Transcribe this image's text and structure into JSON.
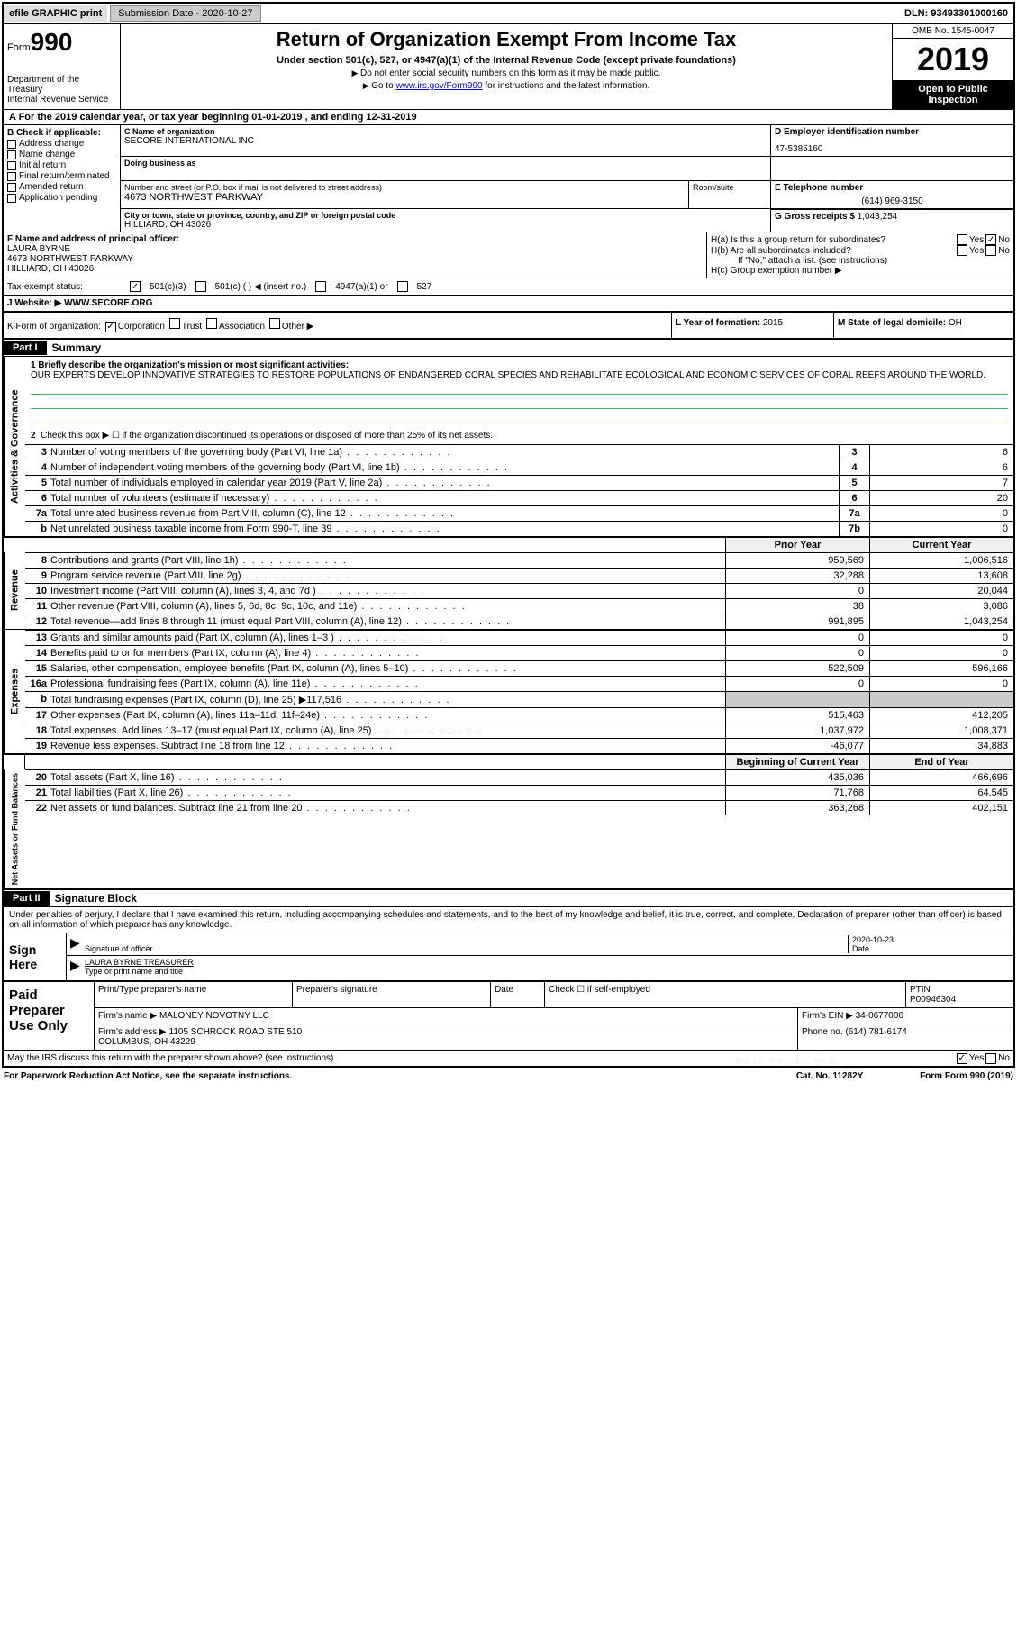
{
  "topbar": {
    "efile": "efile GRAPHIC print",
    "submission_label": "Submission Date - 2020-10-27",
    "dln": "DLN: 93493301000160"
  },
  "header": {
    "form_word": "Form",
    "form_num": "990",
    "dept": "Department of the Treasury\nInternal Revenue Service",
    "title": "Return of Organization Exempt From Income Tax",
    "subtitle": "Under section 501(c), 527, or 4947(a)(1) of the Internal Revenue Code (except private foundations)",
    "note1": "Do not enter social security numbers on this form as it may be made public.",
    "note2_pre": "Go to ",
    "note2_link": "www.irs.gov/Form990",
    "note2_post": " for instructions and the latest information.",
    "omb": "OMB No. 1545-0047",
    "year": "2019",
    "inspection": "Open to Public Inspection"
  },
  "period": "A For the 2019 calendar year, or tax year beginning 01-01-2019    , and ending 12-31-2019",
  "section_b": {
    "label": "B Check if applicable:",
    "items": [
      "Address change",
      "Name change",
      "Initial return",
      "Final return/terminated",
      "Amended return",
      "Application pending"
    ]
  },
  "section_c": {
    "name_lbl": "C Name of organization",
    "name": "SECORE INTERNATIONAL INC",
    "dba_lbl": "Doing business as",
    "dba": "",
    "addr_lbl": "Number and street (or P.O. box if mail is not delivered to street address)",
    "room_lbl": "Room/suite",
    "addr": "4673 NORTHWEST PARKWAY",
    "city_lbl": "City or town, state or province, country, and ZIP or foreign postal code",
    "city": "HILLIARD, OH  43026"
  },
  "section_d": {
    "lbl": "D Employer identification number",
    "val": "47-5385160"
  },
  "section_e": {
    "lbl": "E Telephone number",
    "val": "(614) 969-3150"
  },
  "section_g": {
    "lbl": "G Gross receipts $",
    "val": "1,043,254"
  },
  "section_f": {
    "lbl": "F Name and address of principal officer:",
    "name": "LAURA BYRNE",
    "addr": "4673 NORTHWEST PARKWAY\nHILLIARD, OH  43026"
  },
  "section_h": {
    "ha": "H(a)  Is this a group return for subordinates?",
    "hb": "H(b)  Are all subordinates included?",
    "hb_note": "If \"No,\" attach a list. (see instructions)",
    "hc": "H(c)  Group exemption number ▶",
    "yes": "Yes",
    "no": "No"
  },
  "tax_status": {
    "lbl": "Tax-exempt status:",
    "o1": "501(c)(3)",
    "o2": "501(c) (   ) ◀ (insert no.)",
    "o3": "4947(a)(1) or",
    "o4": "527"
  },
  "section_j": {
    "lbl": "J   Website: ▶",
    "val": "WWW.SECORE.ORG"
  },
  "section_k": {
    "lbl": "K Form of organization:",
    "opts": [
      "Corporation",
      "Trust",
      "Association",
      "Other ▶"
    ]
  },
  "section_l": {
    "lbl": "L Year of formation:",
    "val": "2015"
  },
  "section_m": {
    "lbl": "M State of legal domicile:",
    "val": "OH"
  },
  "part1": {
    "hdr": "Part I",
    "title": "Summary"
  },
  "mission": {
    "q1": "1   Briefly describe the organization's mission or most significant activities:",
    "text": "OUR EXPERTS DEVELOP INNOVATIVE STRATEGIES TO RESTORE POPULATIONS OF ENDANGERED CORAL SPECIES AND REHABILITATE ECOLOGICAL AND ECONOMIC SERVICES OF CORAL REEFS AROUND THE WORLD."
  },
  "q2": "Check this box ▶ ☐ if the organization discontinued its operations or disposed of more than 25% of its net assets.",
  "gov_lines": [
    {
      "n": "3",
      "d": "Number of voting members of the governing body (Part VI, line 1a)",
      "box": "3",
      "v": "6"
    },
    {
      "n": "4",
      "d": "Number of independent voting members of the governing body (Part VI, line 1b)",
      "box": "4",
      "v": "6"
    },
    {
      "n": "5",
      "d": "Total number of individuals employed in calendar year 2019 (Part V, line 2a)",
      "box": "5",
      "v": "7"
    },
    {
      "n": "6",
      "d": "Total number of volunteers (estimate if necessary)",
      "box": "6",
      "v": "20"
    },
    {
      "n": "7a",
      "d": "Total unrelated business revenue from Part VIII, column (C), line 12",
      "box": "7a",
      "v": "0"
    },
    {
      "n": "b",
      "d": "Net unrelated business taxable income from Form 990-T, line 39",
      "box": "7b",
      "v": "0"
    }
  ],
  "col_hdrs": {
    "prior": "Prior Year",
    "current": "Current Year",
    "boy": "Beginning of Current Year",
    "eoy": "End of Year"
  },
  "rev_lines": [
    {
      "n": "8",
      "d": "Contributions and grants (Part VIII, line 1h)",
      "py": "959,569",
      "cy": "1,006,516"
    },
    {
      "n": "9",
      "d": "Program service revenue (Part VIII, line 2g)",
      "py": "32,288",
      "cy": "13,608"
    },
    {
      "n": "10",
      "d": "Investment income (Part VIII, column (A), lines 3, 4, and 7d )",
      "py": "0",
      "cy": "20,044"
    },
    {
      "n": "11",
      "d": "Other revenue (Part VIII, column (A), lines 5, 6d, 8c, 9c, 10c, and 11e)",
      "py": "38",
      "cy": "3,086"
    },
    {
      "n": "12",
      "d": "Total revenue—add lines 8 through 11 (must equal Part VIII, column (A), line 12)",
      "py": "991,895",
      "cy": "1,043,254"
    }
  ],
  "exp_lines": [
    {
      "n": "13",
      "d": "Grants and similar amounts paid (Part IX, column (A), lines 1–3 )",
      "py": "0",
      "cy": "0"
    },
    {
      "n": "14",
      "d": "Benefits paid to or for members (Part IX, column (A), line 4)",
      "py": "0",
      "cy": "0"
    },
    {
      "n": "15",
      "d": "Salaries, other compensation, employee benefits (Part IX, column (A), lines 5–10)",
      "py": "522,509",
      "cy": "596,166"
    },
    {
      "n": "16a",
      "d": "Professional fundraising fees (Part IX, column (A), line 11e)",
      "py": "0",
      "cy": "0"
    },
    {
      "n": "b",
      "d": "Total fundraising expenses (Part IX, column (D), line 25) ▶117,516",
      "py": "",
      "cy": "",
      "shaded": true
    },
    {
      "n": "17",
      "d": "Other expenses (Part IX, column (A), lines 11a–11d, 11f–24e)",
      "py": "515,463",
      "cy": "412,205"
    },
    {
      "n": "18",
      "d": "Total expenses. Add lines 13–17 (must equal Part IX, column (A), line 25)",
      "py": "1,037,972",
      "cy": "1,008,371"
    },
    {
      "n": "19",
      "d": "Revenue less expenses. Subtract line 18 from line 12",
      "py": "-46,077",
      "cy": "34,883"
    }
  ],
  "net_lines": [
    {
      "n": "20",
      "d": "Total assets (Part X, line 16)",
      "py": "435,036",
      "cy": "466,696"
    },
    {
      "n": "21",
      "d": "Total liabilities (Part X, line 26)",
      "py": "71,768",
      "cy": "64,545"
    },
    {
      "n": "22",
      "d": "Net assets or fund balances. Subtract line 21 from line 20",
      "py": "363,268",
      "cy": "402,151"
    }
  ],
  "side_labels": {
    "gov": "Activities & Governance",
    "rev": "Revenue",
    "exp": "Expenses",
    "net": "Net Assets or Fund Balances"
  },
  "part2": {
    "hdr": "Part II",
    "title": "Signature Block"
  },
  "sig_text": "Under penalties of perjury, I declare that I have examined this return, including accompanying schedules and statements, and to the best of my knowledge and belief, it is true, correct, and complete. Declaration of preparer (other than officer) is based on all information of which preparer has any knowledge.",
  "sign_here": "Sign Here",
  "sig": {
    "officer_lbl": "Signature of officer",
    "date_lbl": "Date",
    "date_val": "2020-10-23",
    "name": "LAURA BYRNE  TREASURER",
    "name_lbl": "Type or print name and title"
  },
  "prep": {
    "hdr": "Paid Preparer Use Only",
    "name_lbl": "Print/Type preparer's name",
    "sig_lbl": "Preparer's signature",
    "date_lbl": "Date",
    "check_lbl": "Check ☐ if self-employed",
    "ptin_lbl": "PTIN",
    "ptin": "P00946304",
    "firm_lbl": "Firm's name    ▶",
    "firm": "MALONEY NOVOTNY LLC",
    "ein_lbl": "Firm's EIN ▶",
    "ein": "34-0677006",
    "addr_lbl": "Firm's address ▶",
    "addr": "1105 SCHROCK ROAD STE 510\nCOLUMBUS, OH  43229",
    "phone_lbl": "Phone no.",
    "phone": "(614) 781-6174"
  },
  "discuss": {
    "q": "May the IRS discuss this return with the preparer shown above? (see instructions)",
    "yes": "Yes",
    "no": "No"
  },
  "footer": {
    "pra": "For Paperwork Reduction Act Notice, see the separate instructions.",
    "cat": "Cat. No. 11282Y",
    "form": "Form 990 (2019)"
  },
  "colors": {
    "link": "#0000cc",
    "rule": "#4a9966"
  }
}
